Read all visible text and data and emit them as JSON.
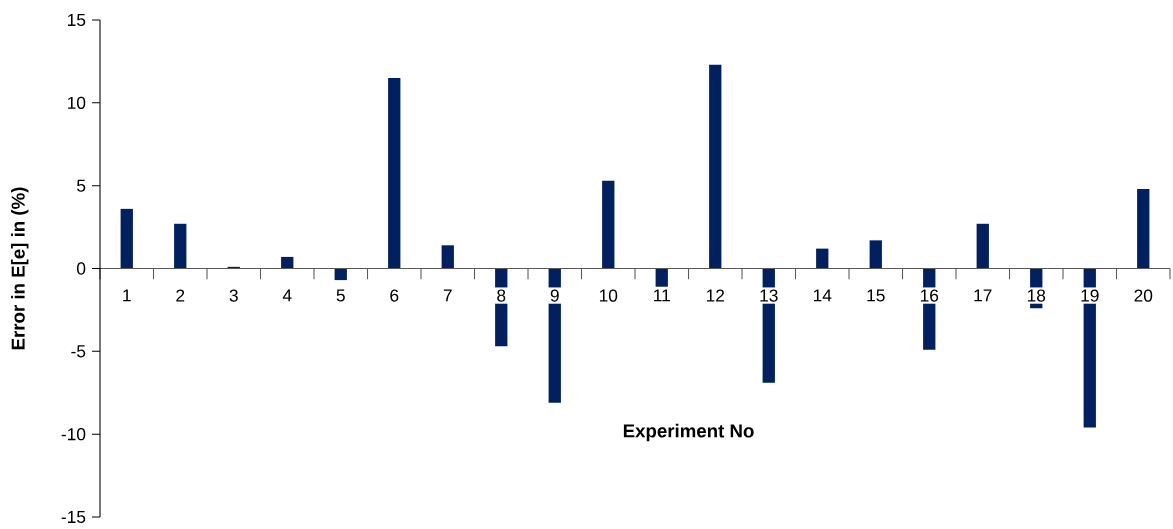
{
  "chart_data": {
    "type": "bar",
    "xlabel": "Experiment No",
    "ylabel": "Error in E[e] in (%)",
    "categories": [
      "1",
      "2",
      "3",
      "4",
      "5",
      "6",
      "7",
      "8",
      "9",
      "10",
      "11",
      "12",
      "13",
      "14",
      "15",
      "16",
      "17",
      "18",
      "19",
      "20"
    ],
    "values": [
      3.6,
      2.7,
      0.1,
      0.7,
      -0.7,
      11.5,
      1.4,
      -4.7,
      -8.1,
      5.3,
      -1.1,
      12.3,
      -6.9,
      1.2,
      1.7,
      -4.9,
      2.7,
      -2.4,
      -9.6,
      4.8
    ],
    "color": "#002060",
    "ylim": [
      -15,
      15
    ],
    "yticks": [
      -15,
      -10,
      -5,
      0,
      5,
      10,
      15
    ]
  }
}
